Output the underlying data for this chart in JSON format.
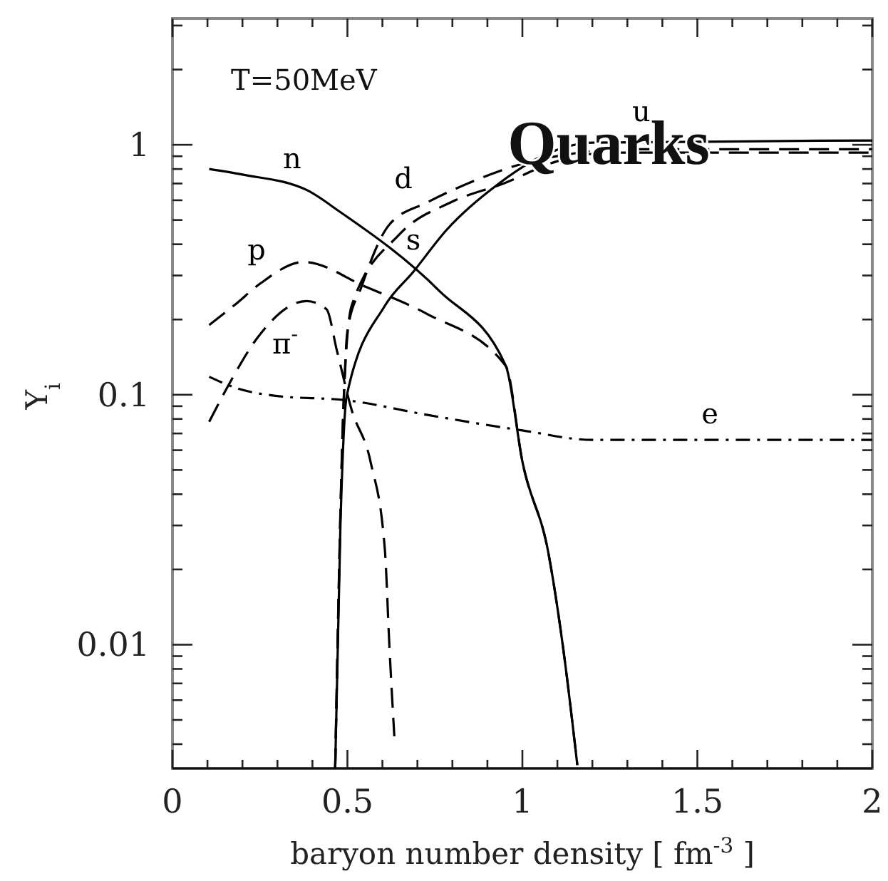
{
  "chart_data": {
    "type": "line",
    "xlabel": "baryon number density [ fm$^{-3}$ ]",
    "ylabel": "Y$_{i}$",
    "log": "y",
    "xlim": [
      0,
      2
    ],
    "ylim": [
      0.0032,
      3.2
    ],
    "xticks": [
      0,
      {
        "value": 0.1,
        "label": null
      },
      {
        "value": 0.2,
        "label": null
      },
      {
        "value": 0.3,
        "label": null
      },
      {
        "value": 0.4,
        "label": null
      },
      0.5,
      {
        "value": 0.6,
        "label": null
      },
      {
        "value": 0.7,
        "label": null
      },
      {
        "value": 0.8,
        "label": null
      },
      {
        "value": 0.9,
        "label": null
      },
      1,
      {
        "value": 1.1,
        "label": null
      },
      {
        "value": 1.2,
        "label": null
      },
      {
        "value": 1.3,
        "label": null
      },
      {
        "value": 1.4,
        "label": null
      },
      1.5,
      {
        "value": 1.6,
        "label": null
      },
      {
        "value": 1.7,
        "label": null
      },
      {
        "value": 1.8,
        "label": null
      },
      {
        "value": 1.9,
        "label": null
      },
      2
    ],
    "yticks": [
      {
        "value": 0.004,
        "label": null
      },
      {
        "value": 0.005,
        "label": null
      },
      {
        "value": 0.006,
        "label": null
      },
      {
        "value": 0.007,
        "label": null
      },
      {
        "value": 0.008,
        "label": null
      },
      {
        "value": 0.009,
        "label": null
      },
      0.01,
      {
        "value": 0.02,
        "label": null
      },
      {
        "value": 0.03,
        "label": null
      },
      {
        "value": 0.04,
        "label": null
      },
      {
        "value": 0.05,
        "label": null
      },
      {
        "value": 0.06,
        "label": null
      },
      {
        "value": 0.07,
        "label": null
      },
      {
        "value": 0.08,
        "label": null
      },
      {
        "value": 0.09,
        "label": null
      },
      0.1,
      {
        "value": 0.2,
        "label": null
      },
      {
        "value": 0.3,
        "label": null
      },
      {
        "value": 0.4,
        "label": null
      },
      {
        "value": 0.5,
        "label": null
      },
      {
        "value": 0.6,
        "label": null
      },
      {
        "value": 0.7,
        "label": null
      },
      {
        "value": 0.8,
        "label": null
      },
      {
        "value": 0.9,
        "label": null
      },
      1,
      {
        "value": 2,
        "label": null
      },
      {
        "value": 3,
        "label": null
      }
    ],
    "grid": false,
    "marker": "none",
    "series": [
      {
        "name": "n",
        "color": "#000000",
        "line_style": "solid",
        "x": [
          0.105,
          0.2,
          0.383,
          0.478,
          0.763,
          0.953,
          1.0,
          1.075,
          1.116,
          1.157
        ],
        "values": [
          0.8,
          0.76,
          0.66,
          0.54,
          0.26,
          0.13,
          0.054,
          0.023,
          0.0098,
          0.0033
        ]
      },
      {
        "name": "p",
        "color": "#000000",
        "line_style": "dashed",
        "x": [
          0.105,
          0.18,
          0.253,
          0.375,
          0.553,
          0.729,
          0.953,
          1.0,
          1.075,
          1.116,
          1.157
        ],
        "values": [
          0.19,
          0.23,
          0.28,
          0.34,
          0.27,
          0.21,
          0.13,
          0.054,
          0.023,
          0.0098,
          0.0033
        ]
      },
      {
        "name": "π$^{-}$",
        "color": "#000000",
        "line_style": "dashed",
        "x": [
          0.105,
          0.166,
          0.24,
          0.383,
          0.44,
          0.47,
          0.512,
          0.566,
          0.607,
          0.62,
          0.634
        ],
        "values": [
          0.078,
          0.113,
          0.167,
          0.237,
          0.22,
          0.15,
          0.087,
          0.054,
          0.024,
          0.0098,
          0.0043
        ]
      },
      {
        "name": "d",
        "color": "#000000",
        "line_style": "dashed",
        "x": [
          0.465,
          0.49,
          0.5,
          0.54,
          0.62,
          0.73,
          0.865,
          1.0,
          1.14,
          1.27,
          2
        ],
        "values": [
          0.0032,
          0.1,
          0.18,
          0.27,
          0.48,
          0.59,
          0.72,
          0.84,
          0.92,
          0.96,
          0.96
        ]
      },
      {
        "name": "s",
        "color": "#000000",
        "line_style": "dashed",
        "x": [
          0.465,
          0.49,
          0.512,
          0.648,
          0.797,
          0.946,
          1.1,
          1.25,
          2
        ],
        "values": [
          0.0032,
          0.1,
          0.227,
          0.437,
          0.59,
          0.7,
          0.86,
          0.93,
          0.93
        ]
      },
      {
        "name": "u",
        "color": "#000000",
        "line_style": "solid",
        "x": [
          0.465,
          0.48,
          0.498,
          0.607,
          0.688,
          0.783,
          0.933,
          1.07,
          1.2,
          2
        ],
        "values": [
          0.0032,
          0.03,
          0.099,
          0.227,
          0.31,
          0.456,
          0.7,
          0.92,
          1.02,
          1.04
        ]
      },
      {
        "name": "e",
        "color": "#000000",
        "line_style": "dashdot",
        "x": [
          0.105,
          0.186,
          0.294,
          0.498,
          0.729,
          1.0,
          1.2,
          2
        ],
        "values": [
          0.118,
          0.106,
          0.099,
          0.095,
          0.083,
          0.072,
          0.066,
          0.066
        ]
      }
    ],
    "annotations": [
      "T=50MeV",
      "Quarks"
    ]
  }
}
